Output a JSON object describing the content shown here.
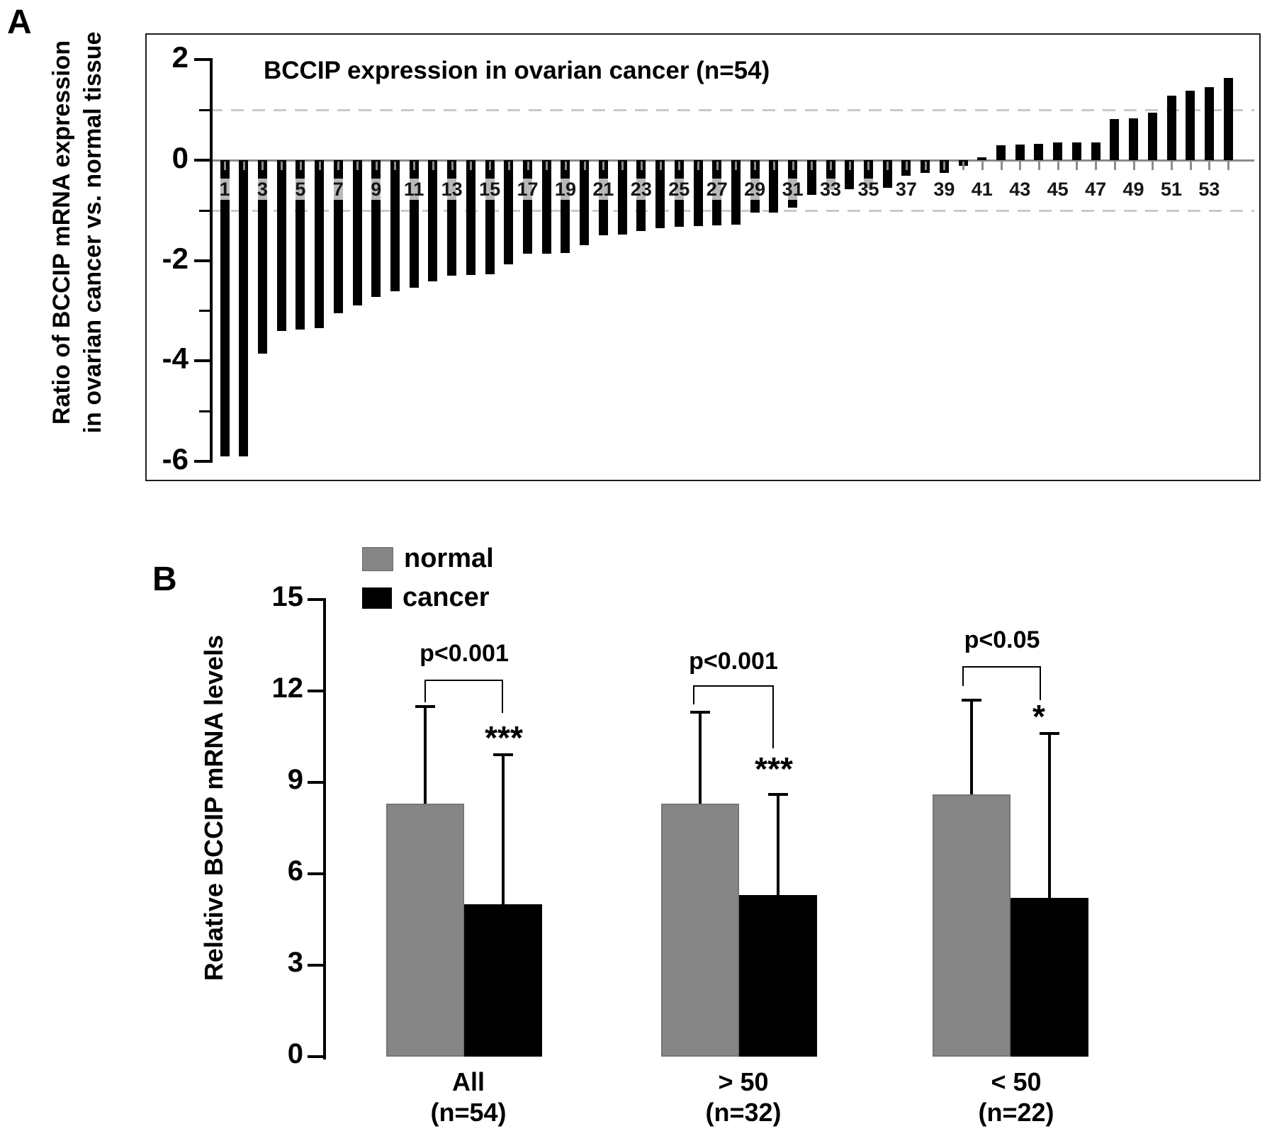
{
  "figure": {
    "panel_a_label": "A",
    "panel_b_label": "B"
  },
  "chart_data": [
    {
      "panel": "A",
      "type": "bar",
      "title": "BCCIP expression in ovarian cancer (n=54)",
      "ylabel_line1": "Ratio of BCCIP mRNA expression",
      "ylabel_line2": "in ovarian cancer vs. normal tissue",
      "n": 54,
      "bar_color": "#000000",
      "axis_color": "#8c8c8c",
      "grid_color": "#c9c9c9",
      "ylim": [
        -6,
        2
      ],
      "yticks_major": [
        2,
        0,
        -2,
        -4,
        -6
      ],
      "yticks_minor": [
        1,
        -1,
        -3,
        -5
      ],
      "dashed_gridlines": [
        1,
        -1
      ],
      "xtick_labels": [
        1,
        3,
        5,
        7,
        9,
        11,
        13,
        15,
        17,
        19,
        21,
        23,
        25,
        27,
        29,
        31,
        33,
        35,
        37,
        39,
        41,
        43,
        45,
        47,
        49,
        51,
        53
      ],
      "values": [
        -5.9,
        -5.9,
        -3.85,
        -3.4,
        -3.38,
        -3.35,
        -3.05,
        -2.9,
        -2.73,
        -2.62,
        -2.54,
        -2.42,
        -2.3,
        -2.29,
        -2.28,
        -2.08,
        -1.87,
        -1.86,
        -1.85,
        -1.69,
        -1.5,
        -1.49,
        -1.41,
        -1.36,
        -1.33,
        -1.32,
        -1.3,
        -1.28,
        -1.05,
        -1.04,
        -0.95,
        -0.69,
        -0.59,
        -0.58,
        -0.57,
        -0.55,
        -0.31,
        -0.26,
        -0.25,
        -0.11,
        0.06,
        0.3,
        0.31,
        0.32,
        0.36,
        0.36,
        0.36,
        0.82,
        0.83,
        0.94,
        1.28,
        1.39,
        1.46,
        1.64
      ]
    },
    {
      "panel": "B",
      "type": "grouped-bar",
      "ylabel": "Relative BCCIP mRNA levels",
      "ylim": [
        0,
        15
      ],
      "yticks": [
        0,
        3,
        6,
        9,
        12,
        15
      ],
      "legend": [
        {
          "label": "normal",
          "color": "#868686"
        },
        {
          "label": "cancer",
          "color": "#000000"
        }
      ],
      "categories": [
        "All",
        "> 50",
        "< 50"
      ],
      "groups": [
        {
          "label": "All",
          "sublabel": "(n=54)",
          "normal": 8.3,
          "cancer": 5.0,
          "normal_err_top": 11.5,
          "cancer_err_top": 9.9,
          "p_label": "p<0.001",
          "stars": "***"
        },
        {
          "label": "> 50",
          "sublabel": "(n=32)",
          "normal": 8.3,
          "cancer": 5.3,
          "normal_err_top": 11.3,
          "cancer_err_top": 8.6,
          "p_label": "p<0.001",
          "stars": "***"
        },
        {
          "label": "< 50",
          "sublabel": "(n=22)",
          "normal": 8.6,
          "cancer": 5.2,
          "normal_err_top": 11.7,
          "cancer_err_top": 10.6,
          "p_label": "p<0.05",
          "stars": "*"
        }
      ]
    }
  ]
}
